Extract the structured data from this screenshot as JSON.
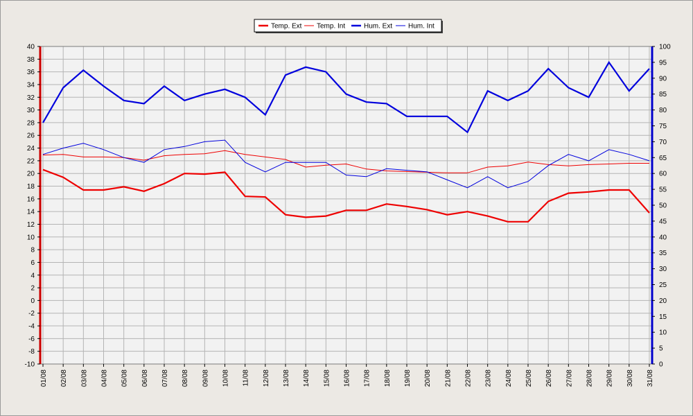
{
  "chart_data": {
    "type": "line",
    "legend": {
      "placement": "top-center",
      "entries": [
        {
          "label": "Temp. Ext",
          "color": "#ee0000",
          "thick": true
        },
        {
          "label": "Temp. Int",
          "color": "#ee0000",
          "thick": false
        },
        {
          "label": "Hum. Ext",
          "color": "#0000dd",
          "thick": true
        },
        {
          "label": "Hum. Int",
          "color": "#0000dd",
          "thick": false
        }
      ]
    },
    "categories": [
      "01/08",
      "02/08",
      "03/08",
      "04/08",
      "05/08",
      "06/08",
      "07/08",
      "08/08",
      "09/08",
      "10/08",
      "11/08",
      "12/08",
      "13/08",
      "14/08",
      "15/08",
      "16/08",
      "17/08",
      "18/08",
      "19/08",
      "20/08",
      "21/08",
      "22/08",
      "23/08",
      "24/08",
      "25/08",
      "26/08",
      "27/08",
      "28/08",
      "29/08",
      "30/08",
      "31/08"
    ],
    "y_left": {
      "range": [
        -10,
        40
      ],
      "step": 2,
      "axis_color": "#cc0000",
      "tick_labels": [
        "40",
        "38",
        "36",
        "34",
        "32",
        "30",
        "28",
        "26",
        "24",
        "22",
        "20",
        "18",
        "16",
        "14",
        "12",
        "10",
        "8",
        "6",
        "4",
        "2",
        "0",
        "-2",
        "-4",
        "-6",
        "-8",
        "-10"
      ]
    },
    "y_right": {
      "range": [
        0,
        100
      ],
      "step": 5,
      "axis_color": "#0000cc",
      "tick_labels": [
        "100",
        "95",
        "90",
        "85",
        "80",
        "75",
        "70",
        "65",
        "60",
        "55",
        "50",
        "45",
        "40",
        "35",
        "30",
        "25",
        "20",
        "15",
        "10",
        "5",
        "0"
      ]
    },
    "grid": true,
    "series": [
      {
        "name": "Temp. Ext",
        "axis": "left",
        "color": "#ee0000",
        "width": 2.2,
        "values": [
          20.6,
          19.4,
          17.4,
          17.4,
          17.9,
          17.2,
          18.4,
          20.0,
          19.9,
          20.2,
          16.4,
          16.3,
          13.5,
          13.1,
          13.3,
          14.2,
          14.2,
          15.2,
          14.8,
          14.3,
          13.5,
          14.0,
          13.3,
          12.4,
          12.4,
          15.6,
          16.9,
          17.1,
          17.4,
          17.4,
          13.8
        ]
      },
      {
        "name": "Temp. Int",
        "axis": "left",
        "color": "#ee0000",
        "width": 1,
        "values": [
          22.9,
          23.0,
          22.6,
          22.6,
          22.5,
          22.1,
          22.8,
          23.0,
          23.1,
          23.6,
          23.0,
          22.6,
          22.2,
          21.0,
          21.3,
          21.5,
          20.7,
          20.4,
          20.3,
          20.2,
          20.1,
          20.1,
          21.0,
          21.2,
          21.8,
          21.4,
          21.2,
          21.4,
          21.5,
          21.6,
          21.6
        ]
      },
      {
        "name": "Hum. Ext",
        "axis": "right",
        "color": "#0000dd",
        "width": 2.2,
        "values": [
          76,
          87,
          92.5,
          87.5,
          83,
          82,
          87.5,
          83,
          85,
          86.5,
          84,
          78.5,
          91,
          93.5,
          92,
          85,
          82.5,
          82,
          78,
          78,
          78,
          73,
          86,
          83,
          86,
          93,
          87,
          84,
          95,
          86,
          93
        ]
      },
      {
        "name": "Hum. Int",
        "axis": "right",
        "color": "#0000dd",
        "width": 1,
        "values": [
          66,
          68,
          69.5,
          67.5,
          65,
          63.5,
          67.5,
          68.5,
          70,
          70.5,
          63.5,
          60.5,
          63.5,
          63.5,
          63.5,
          59.5,
          59,
          61.5,
          61,
          60.5,
          58,
          55.5,
          59,
          55.5,
          57.5,
          62.5,
          66,
          64,
          67.5,
          66,
          64
        ]
      }
    ]
  }
}
